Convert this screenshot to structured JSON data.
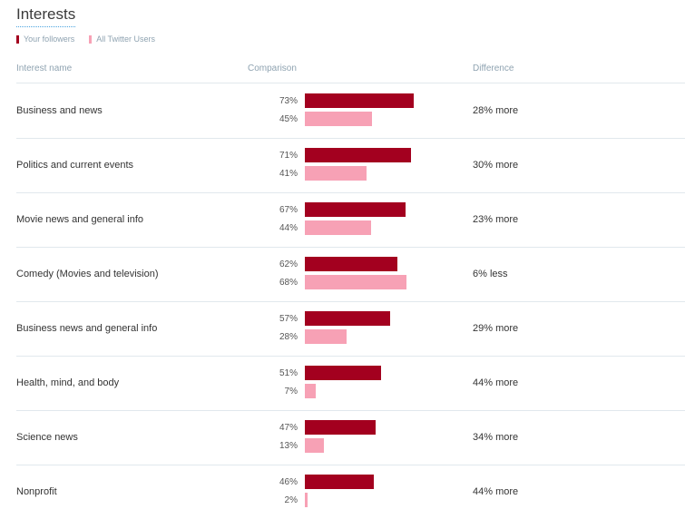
{
  "title": "Interests",
  "legend": [
    {
      "label": "Your followers",
      "color": "#a3001f"
    },
    {
      "label": "All Twitter Users",
      "color": "#f7a1b5"
    }
  ],
  "columns": {
    "name": "Interest name",
    "comparison": "Comparison",
    "difference": "Difference"
  },
  "chart_data": {
    "type": "bar",
    "orientation": "horizontal",
    "title": "Interests",
    "categories": [
      "Business and news",
      "Politics and current events",
      "Movie news and general info",
      "Comedy (Movies and television)",
      "Business news and general info",
      "Health, mind, and body",
      "Science news",
      "Nonprofit"
    ],
    "series": [
      {
        "name": "Your followers",
        "color": "#a3001f",
        "values": [
          73,
          71,
          67,
          62,
          57,
          51,
          47,
          46
        ]
      },
      {
        "name": "All Twitter Users",
        "color": "#f7a1b5",
        "values": [
          45,
          41,
          44,
          68,
          28,
          7,
          13,
          2
        ]
      }
    ],
    "value_labels": {
      "followers": [
        "73%",
        "71%",
        "67%",
        "62%",
        "57%",
        "51%",
        "47%",
        "46%"
      ],
      "all_users": [
        "45%",
        "41%",
        "44%",
        "68%",
        "28%",
        "7%",
        "13%",
        "2%"
      ]
    },
    "difference": [
      "28% more",
      "30% more",
      "23% more",
      "6% less",
      "29% more",
      "44% more",
      "34% more",
      "44% more"
    ],
    "xlim": [
      0,
      100
    ],
    "grid": false,
    "legend_position": "top-left"
  }
}
